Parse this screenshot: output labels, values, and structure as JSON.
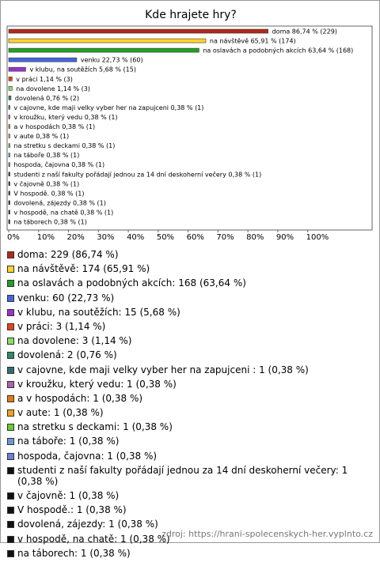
{
  "chart_data": {
    "type": "hbar",
    "title": "Kde hrajete hry?",
    "values": [
      86.74,
      65.91,
      63.64,
      22.73,
      5.68,
      1.14,
      1.14,
      0.76,
      0.38,
      0.38,
      0.38,
      0.38,
      0.38,
      0.38,
      0.38,
      0.38,
      0.38,
      0.38,
      0.38,
      0.38,
      0.38
    ],
    "value_labels": [
      "doma 86,74 % (229)",
      "na návštěvě 65,91 % (174)",
      "na oslavách a podobných akcích 63,64 % (168)",
      "venku 22,73 % (60)",
      "v klubu, na soutěžích 5,68 % (15)",
      "v práci 1,14 % (3)",
      "na dovolene 1,14 % (3)",
      "dovolená 0,76 % (2)",
      "v cajovne, kde maji velky vyber her na zapujceni  0,38 % (1)",
      "v kroužku, který vedu 0,38 % (1)",
      "a v hospodách 0,38 % (1)",
      "v aute 0,38 % (1)",
      "na stretku s deckami 0,38 % (1)",
      "na táboře 0,38 % (1)",
      "hospoda, čajovna 0,38 % (1)",
      "studenti z naší fakulty pořádají jednou za 14 dní deskoherní večery 0,38 % (1)",
      "v čajovně 0,38 % (1)",
      "V hospodě. 0,38 % (1)",
      "dovolená, zájezdy 0,38 % (1)",
      "v hospodě, na chatě 0,38 % (1)",
      "na táborech 0,38 % (1)"
    ],
    "legend_labels": [
      "doma: 229 (86,74 %)",
      "na návštěvě: 174 (65,91 %)",
      "na oslavách a podobných akcích: 168 (63,64 %)",
      "venku: 60 (22,73 %)",
      "v klubu, na soutěžích: 15 (5,68 %)",
      "v práci: 3 (1,14 %)",
      "na dovolene: 3 (1,14 %)",
      "dovolená: 2 (0,76 %)",
      "v cajovne, kde maji velky vyber her na zapujceni : 1 (0,38 %)",
      "v kroužku, který vedu: 1 (0,38 %)",
      "a v hospodách: 1 (0,38 %)",
      "v aute: 1 (0,38 %)",
      "na stretku s deckami: 1 (0,38 %)",
      "na táboře: 1 (0,38 %)",
      "hospoda, čajovna: 1 (0,38 %)",
      "studenti z naší fakulty pořádají jednou za 14 dní deskoherní večery: 1 (0,38 %)",
      "v čajovně: 1 (0,38 %)",
      "V hospodě.: 1 (0,38 %)",
      "dovolená, zájezdy: 1 (0,38 %)",
      "v hospodě, na chatě: 1 (0,38 %)",
      "na táborech: 1 (0,38 %)"
    ],
    "colors": [
      "#b22a1a",
      "#ffd42a",
      "#22a022",
      "#4466dd",
      "#9933cc",
      "#e0441c",
      "#88dd66",
      "#2e8b6a",
      "#2f6f70",
      "#b060b0",
      "#e07a10",
      "#f0a020",
      "#66cc33",
      "#6c9ad0",
      "#6b7fd7",
      "#111111",
      "#111111",
      "#111111",
      "#111111",
      "#111111",
      "#111111"
    ],
    "xlim": [
      0,
      121
    ],
    "xticks": [
      {
        "value": 0,
        "label": "0%"
      },
      {
        "value": 10,
        "label": "10%"
      },
      {
        "value": 20,
        "label": "20%"
      },
      {
        "value": 30,
        "label": "30%"
      },
      {
        "value": 40,
        "label": "40%"
      },
      {
        "value": 50,
        "label": "50%"
      },
      {
        "value": 60,
        "label": "60%"
      },
      {
        "value": 70,
        "label": "70%"
      },
      {
        "value": 80,
        "label": "80%"
      },
      {
        "value": 90,
        "label": "90%"
      },
      {
        "value": 100,
        "label": "100%"
      }
    ],
    "source": "zdroj: https://hrani-spolecenskych-her.vyplnto.cz"
  }
}
